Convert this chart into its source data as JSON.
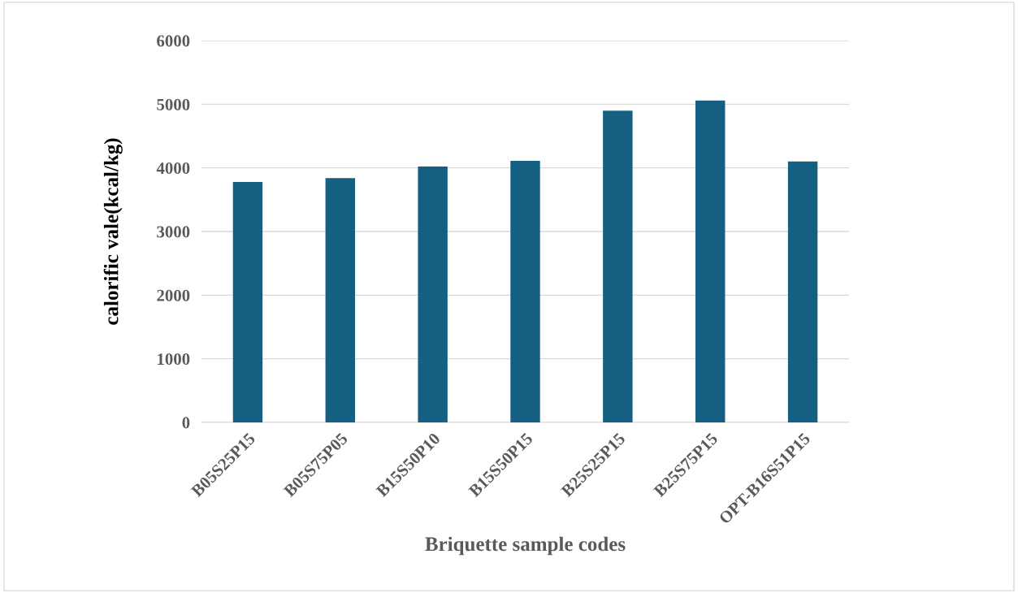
{
  "chart_data": {
    "type": "bar",
    "xlabel": "Briquette sample codes",
    "ylabel": "calorific vale(kcal/kg)",
    "categories": [
      "B05S25P15",
      "B05S75P05",
      "B15S50P10",
      "B15S50P15",
      "B25S25P15",
      "B25S75P15",
      "OPT-B16S51P15"
    ],
    "values": [
      3780,
      3840,
      4020,
      4110,
      4900,
      5060,
      4100
    ],
    "color": "#156082",
    "ylim": [
      0,
      6000
    ],
    "yticks": [
      0,
      1000,
      2000,
      3000,
      4000,
      5000,
      6000
    ],
    "grid": "y",
    "legend": false
  }
}
